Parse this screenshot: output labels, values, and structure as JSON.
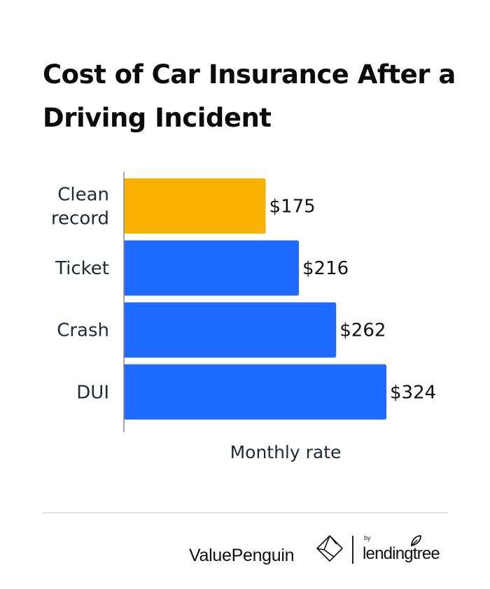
{
  "title": "Cost of Car Insurance After a Driving Incident",
  "chart_data": {
    "type": "bar",
    "orientation": "horizontal",
    "categories": [
      "Clean record",
      "Ticket",
      "Crash",
      "DUI"
    ],
    "values": [
      175,
      216,
      262,
      324
    ],
    "value_labels": [
      "$175",
      "$216",
      "$262",
      "$324"
    ],
    "xlabel": "Monthly rate",
    "ylabel": "",
    "xlim": [
      0,
      324
    ],
    "grid": false,
    "legend": "none",
    "colors": [
      "#F9B200",
      "#1F6BFF",
      "#1F6BFF",
      "#1F6BFF"
    ]
  },
  "footer": {
    "brand": "ValuePenguin",
    "by": "by",
    "partner": "lendingtree"
  }
}
